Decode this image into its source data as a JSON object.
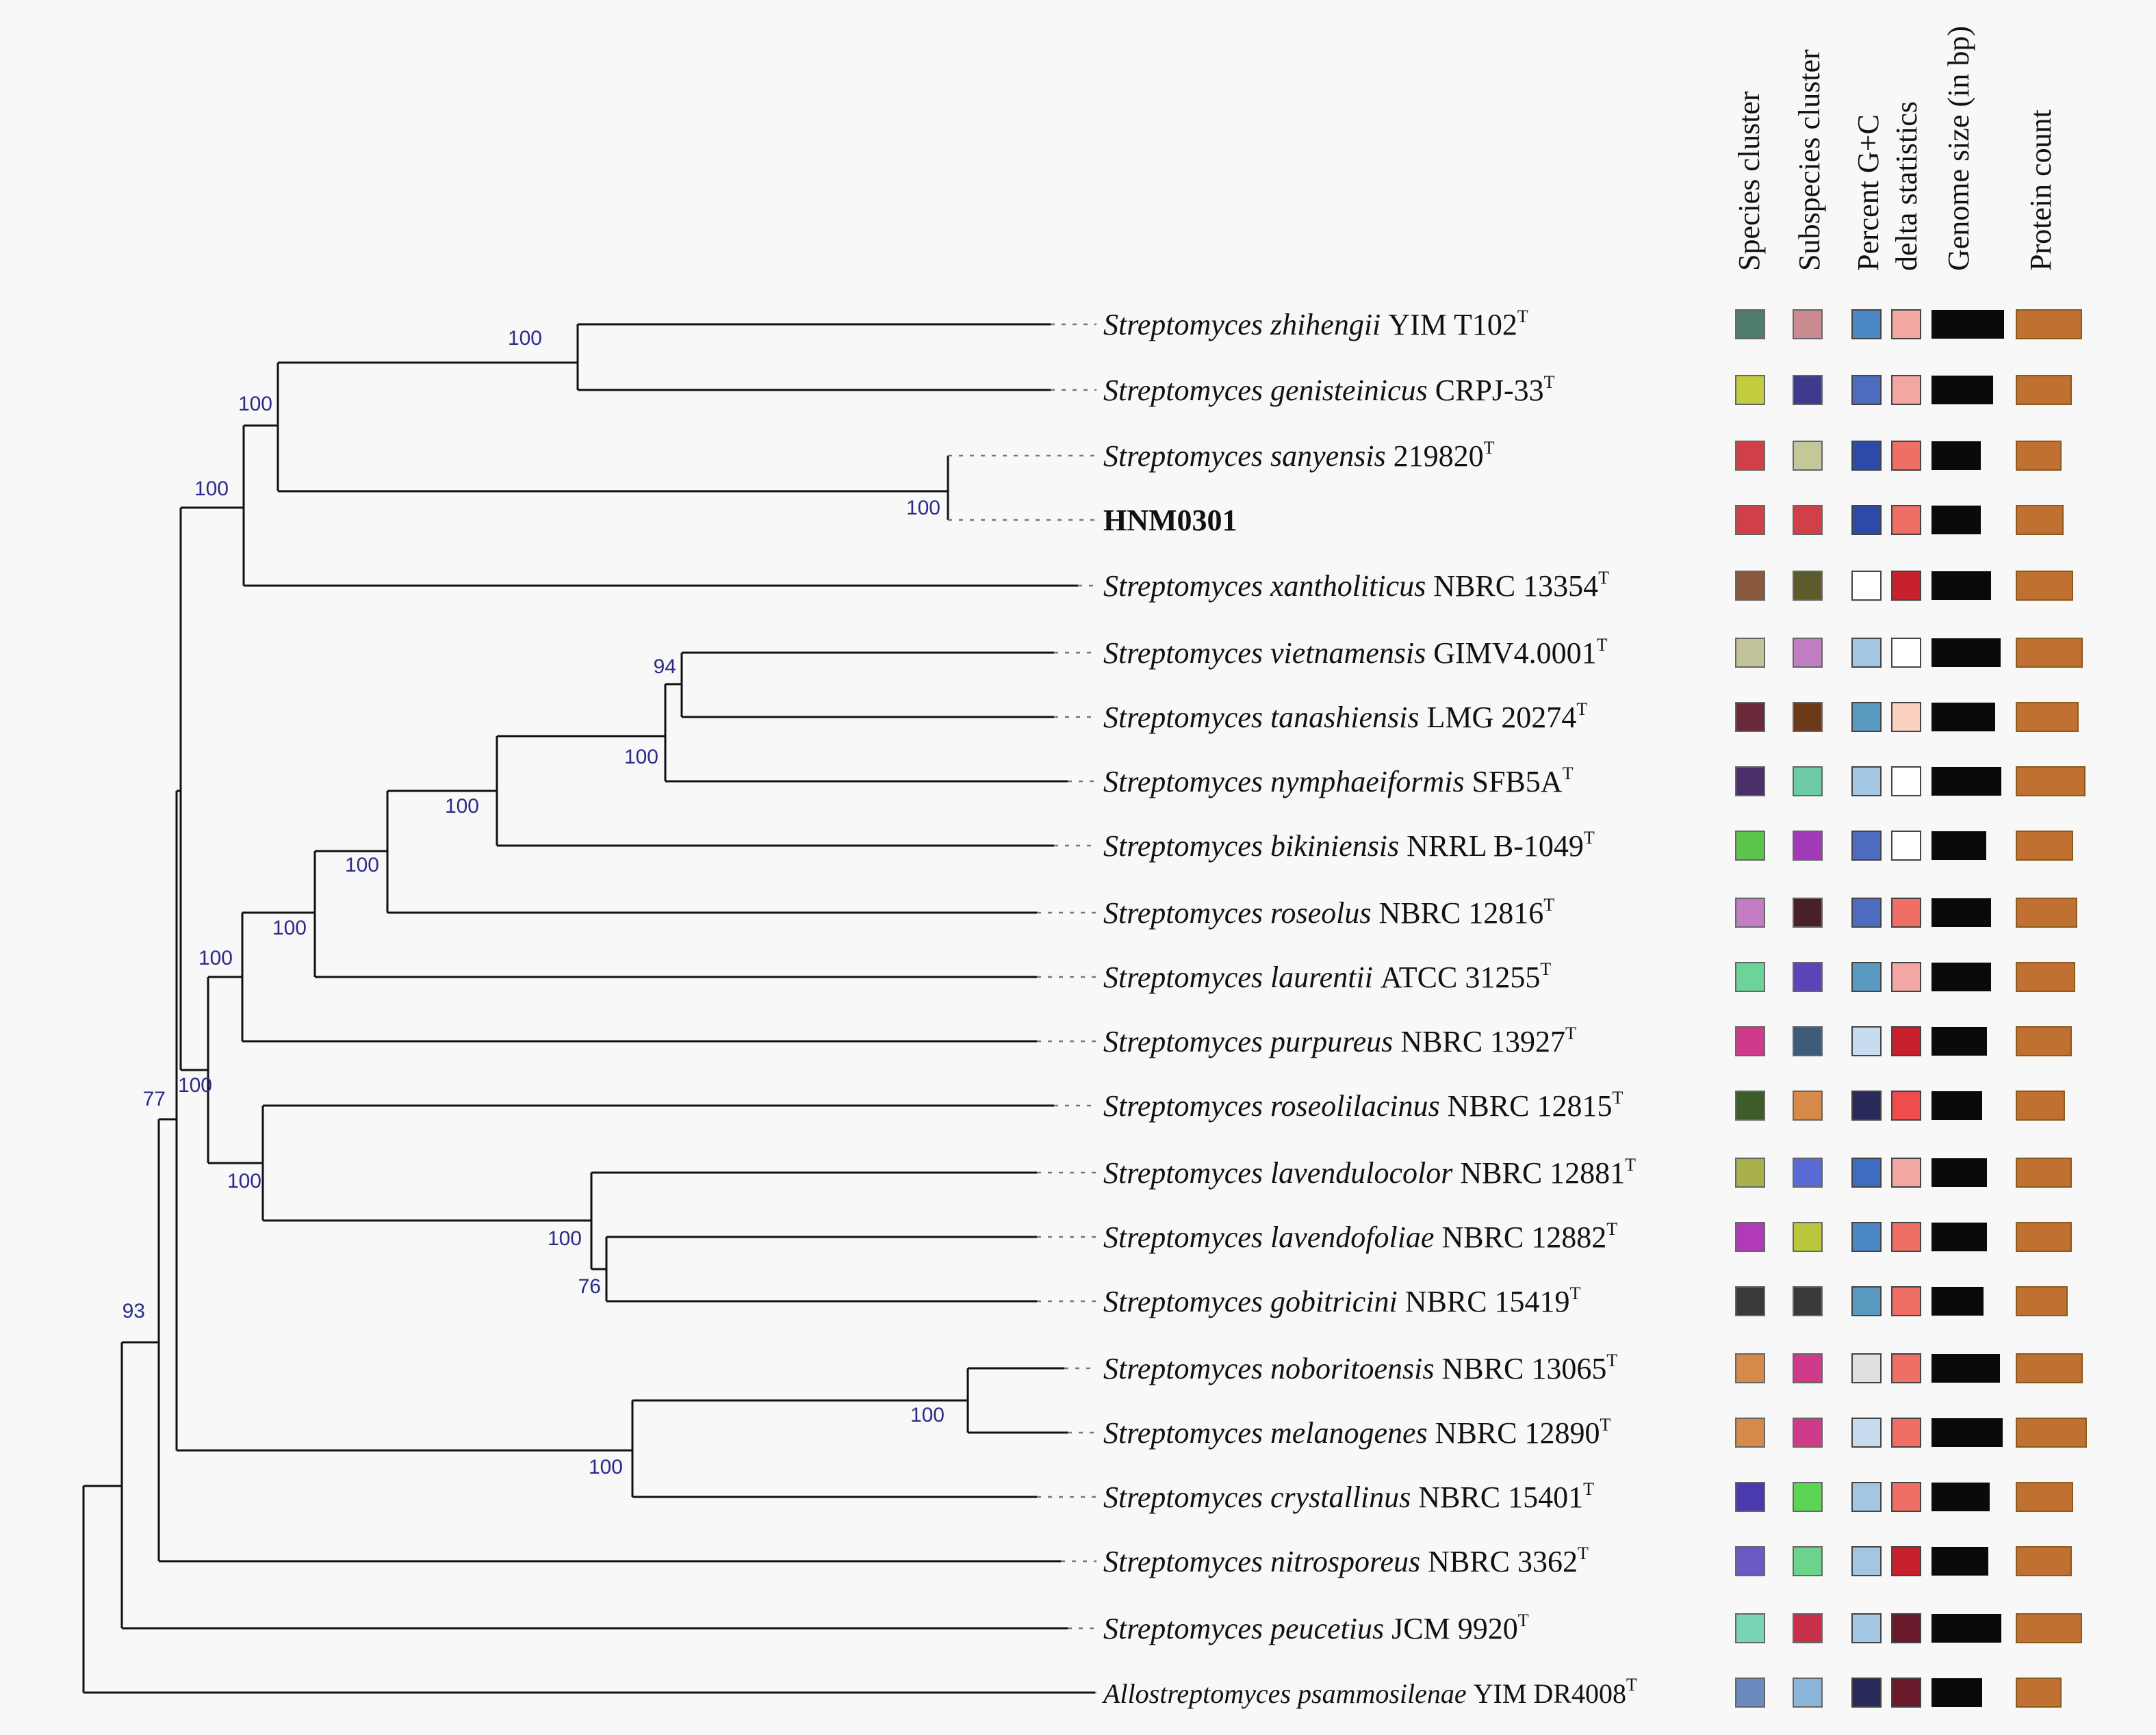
{
  "columns": [
    "Species cluster",
    "Subspecies cluster",
    "Percent G+C",
    "delta statistics",
    "Genome size (in bp)",
    "Protein count"
  ],
  "taxa": [
    {
      "genus": "Streptomyces",
      "epithet": "zhihengii",
      "strain": "YIM T102",
      "sup": "T",
      "species": "#4e7d6d",
      "subspecies": "#c98a92",
      "gc": "#4a87c4",
      "delta": "#f2a7a3",
      "genome": 1.0,
      "protein": 0.95
    },
    {
      "genus": "Streptomyces",
      "epithet": "genisteinicus",
      "strain": "CRPJ-33",
      "sup": "T",
      "species": "#c3cd3d",
      "subspecies": "#3e3a8c",
      "gc": "#4d6cc0",
      "delta": "#f2a7a3",
      "genome": 0.85,
      "protein": 0.8
    },
    {
      "genus": "Streptomyces",
      "epithet": "sanyensis",
      "strain": "219820",
      "sup": "T",
      "species": "#d04048",
      "subspecies": "#c3c79a",
      "gc": "#2d4aa8",
      "delta": "#ef6e66",
      "genome": 0.68,
      "protein": 0.65
    },
    {
      "genus": "",
      "epithet": "",
      "strain": "HNM0301",
      "sup": "",
      "bold": true,
      "species": "#d04048",
      "subspecies": "#d04048",
      "gc": "#2d4aa8",
      "delta": "#ef6e66",
      "genome": 0.68,
      "protein": 0.68
    },
    {
      "genus": "Streptomyces",
      "epithet": "xantholiticus",
      "strain": "NBRC 13354",
      "sup": "T",
      "species": "#8a5a3e",
      "subspecies": "#5b5b2c",
      "gc": "#ffffff",
      "delta": "#c8202c",
      "genome": 0.82,
      "protein": 0.82
    },
    {
      "genus": "Streptomyces",
      "epithet": "vietnamensis",
      "strain": "GIMV4.0001",
      "sup": "T",
      "species": "#c3c39a",
      "subspecies": "#c27dc4",
      "gc": "#a3c6e2",
      "delta": "#ffffff",
      "genome": 0.95,
      "protein": 0.96
    },
    {
      "genus": "Streptomyces",
      "epithet": "tanashiensis",
      "strain": "LMG 20274",
      "sup": "T",
      "species": "#6b2a3a",
      "subspecies": "#6b3a18",
      "gc": "#5a9ac0",
      "delta": "#fbd2c2",
      "genome": 0.88,
      "protein": 0.9
    },
    {
      "genus": "Streptomyces",
      "epithet": "nymphaeiformis",
      "strain": "SFB5A",
      "sup": "T",
      "species": "#4a2f6a",
      "subspecies": "#6ccaa6",
      "gc": "#a3c6e2",
      "delta": "#ffffff",
      "genome": 0.96,
      "protein": 1.0
    },
    {
      "genus": "Streptomyces",
      "epithet": "bikiniensis",
      "strain": "NRRL B-1049",
      "sup": "T",
      "species": "#5cc44a",
      "subspecies": "#a03ab8",
      "gc": "#4d6cc0",
      "delta": "#ffffff",
      "genome": 0.75,
      "protein": 0.82
    },
    {
      "genus": "Streptomyces",
      "epithet": "roseolus",
      "strain": "NBRC 12816",
      "sup": "T",
      "species": "#c27dc4",
      "subspecies": "#4a1f2a",
      "gc": "#4d6cc0",
      "delta": "#ef6e66",
      "genome": 0.82,
      "protein": 0.88
    },
    {
      "genus": "Streptomyces",
      "epithet": "laurentii",
      "strain": "ATCC 31255",
      "sup": "T",
      "species": "#6cd498",
      "subspecies": "#5a44b8",
      "gc": "#5a9ac0",
      "delta": "#f2a7a3",
      "genome": 0.82,
      "protein": 0.85
    },
    {
      "genus": "Streptomyces",
      "epithet": "purpureus",
      "strain": "NBRC 13927",
      "sup": "T",
      "species": "#d03a8a",
      "subspecies": "#3e5c7a",
      "gc": "#c8dcef",
      "delta": "#c8202c",
      "genome": 0.76,
      "protein": 0.8
    },
    {
      "genus": "Streptomyces",
      "epithet": "roseolilacinus",
      "strain": "NBRC 12815",
      "sup": "T",
      "species": "#3e5c2a",
      "subspecies": "#d68a4a",
      "gc": "#2a2a5a",
      "delta": "#ef4c4c",
      "genome": 0.7,
      "protein": 0.7
    },
    {
      "genus": "Streptomyces",
      "epithet": "lavendulocolor",
      "strain": "NBRC 12881",
      "sup": "T",
      "species": "#a8b04a",
      "subspecies": "#5a6ad4",
      "gc": "#3e6cc0",
      "delta": "#f2a7a3",
      "genome": 0.76,
      "protein": 0.8
    },
    {
      "genus": "Streptomyces",
      "epithet": "lavendofoliae",
      "strain": "NBRC 12882",
      "sup": "T",
      "species": "#b03ab8",
      "subspecies": "#b8c83a",
      "gc": "#4a87c4",
      "delta": "#ef6e66",
      "genome": 0.76,
      "protein": 0.8
    },
    {
      "genus": "Streptomyces",
      "epithet": "gobitricini",
      "strain": "NBRC 15419",
      "sup": "T",
      "species": "#3a3a3a",
      "subspecies": "#3a3a3a",
      "gc": "#5a9ac0",
      "delta": "#ef6e66",
      "genome": 0.72,
      "protein": 0.74
    },
    {
      "genus": "Streptomyces",
      "epithet": "noboritoensis",
      "strain": "NBRC 13065",
      "sup": "T",
      "species": "#d68a4a",
      "subspecies": "#d03a8a",
      "gc": "#e0e0e0",
      "delta": "#ef6e66",
      "genome": 0.94,
      "protein": 0.96
    },
    {
      "genus": "Streptomyces",
      "epithet": "melanogenes",
      "strain": "NBRC 12890",
      "sup": "T",
      "species": "#d68a4a",
      "subspecies": "#d03a8a",
      "gc": "#c8dcef",
      "delta": "#ef6e66",
      "genome": 0.98,
      "protein": 1.02
    },
    {
      "genus": "Streptomyces",
      "epithet": "crystallinus",
      "strain": "NBRC 15401",
      "sup": "T",
      "species": "#4a3ab0",
      "subspecies": "#5cd454",
      "gc": "#a3c6e2",
      "delta": "#ef6e66",
      "genome": 0.8,
      "protein": 0.82
    },
    {
      "genus": "Streptomyces",
      "epithet": "nitrosporeus",
      "strain": "NBRC 3362",
      "sup": "T",
      "species": "#6a5ac4",
      "subspecies": "#6cd48a",
      "gc": "#a3c6e2",
      "delta": "#c8202c",
      "genome": 0.78,
      "protein": 0.8
    },
    {
      "genus": "Streptomyces",
      "epithet": "peucetius",
      "strain": "JCM 9920",
      "sup": "T",
      "species": "#7ad4b8",
      "subspecies": "#c8304a",
      "gc": "#a3c6e2",
      "delta": "#6a1a2a",
      "genome": 0.96,
      "protein": 0.95
    },
    {
      "genus": "Allostreptomyces",
      "epithet": "psammosilenae",
      "strain": "YIM DR4008",
      "sup": "T",
      "small": true,
      "species": "#6a8ac0",
      "subspecies": "#8ab4d8",
      "gc": "#2a2a5a",
      "delta": "#6a1a2a",
      "genome": 0.7,
      "protein": 0.65
    }
  ],
  "tree": {
    "bootstrap": [
      "100",
      "100",
      "100",
      "100",
      "94",
      "100",
      "100",
      "100",
      "100",
      "100",
      "100",
      "100",
      "100",
      "76",
      "100",
      "100",
      "77",
      "93"
    ]
  }
}
